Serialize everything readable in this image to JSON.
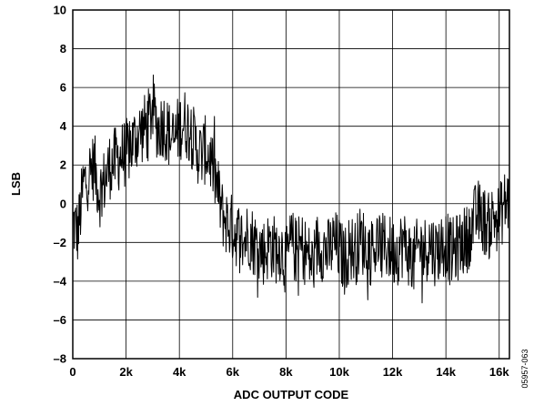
{
  "chart_data": {
    "type": "line",
    "title": "",
    "xlabel": "ADC OUTPUT CODE",
    "ylabel": "LSB",
    "xlim": [
      0,
      16384
    ],
    "ylim": [
      -8,
      10
    ],
    "grid": true,
    "legend": "none",
    "x_ticks": [
      {
        "value": 0,
        "label": "0"
      },
      {
        "value": 2000,
        "label": "2k"
      },
      {
        "value": 4000,
        "label": "4k"
      },
      {
        "value": 6000,
        "label": "6k"
      },
      {
        "value": 8000,
        "label": "8k"
      },
      {
        "value": 10000,
        "label": "10k"
      },
      {
        "value": 12000,
        "label": "12k"
      },
      {
        "value": 14000,
        "label": "14k"
      },
      {
        "value": 16000,
        "label": "16k"
      }
    ],
    "y_ticks": [
      {
        "value": 10,
        "label": "10"
      },
      {
        "value": 8,
        "label": "8"
      },
      {
        "value": 6,
        "label": "6"
      },
      {
        "value": 4,
        "label": "4"
      },
      {
        "value": 2,
        "label": "2"
      },
      {
        "value": 0,
        "label": "0"
      },
      {
        "value": -2,
        "label": "–2"
      },
      {
        "value": -4,
        "label": "–4"
      },
      {
        "value": -6,
        "label": "–6"
      },
      {
        "value": -8,
        "label": "–8"
      }
    ],
    "line_color": "#000000",
    "series": [
      {
        "x": [
          0,
          200,
          400,
          600,
          800,
          1000,
          1200,
          1400,
          1600,
          1800,
          2000,
          2200,
          2400,
          2600,
          2800,
          3000,
          3200,
          3400,
          3600,
          3800,
          4000,
          4200,
          4400,
          4600,
          4800,
          5000,
          5200,
          5400,
          5600,
          5800,
          6000,
          6200,
          6400,
          6600,
          6800,
          7000,
          7200,
          7400,
          7600,
          7800,
          8000,
          8200,
          8400,
          8600,
          8800,
          9000,
          9200,
          9400,
          9600,
          9800,
          10000,
          10200,
          10400,
          10600,
          10800,
          11000,
          11200,
          11400,
          11600,
          11800,
          12000,
          12200,
          12400,
          12600,
          12800,
          13000,
          13200,
          13400,
          13600,
          13800,
          14000,
          14200,
          14400,
          14600,
          14800,
          15000,
          15200,
          15400,
          15600,
          15800,
          16000,
          16200,
          16384
        ],
        "values": [
          -1.0,
          -1.5,
          1.0,
          1.5,
          2.0,
          0.5,
          1.2,
          2.0,
          2.2,
          2.5,
          2.6,
          3.0,
          3.5,
          3.8,
          4.0,
          5.0,
          3.8,
          4.2,
          3.6,
          3.2,
          4.0,
          4.2,
          3.8,
          3.0,
          2.5,
          2.8,
          2.2,
          1.0,
          -0.5,
          -1.0,
          -1.3,
          -1.6,
          -2.0,
          -1.5,
          -2.0,
          -2.3,
          -2.5,
          -2.0,
          -2.4,
          -2.2,
          -3.0,
          -2.0,
          -2.5,
          -2.2,
          -2.6,
          -3.2,
          -2.0,
          -2.3,
          -2.5,
          -2.0,
          -2.4,
          -3.0,
          -2.2,
          -2.5,
          -1.8,
          -2.2,
          -2.5,
          -2.0,
          -2.3,
          -2.2,
          -2.5,
          -2.4,
          -2.0,
          -2.5,
          -3.0,
          -2.2,
          -2.4,
          -2.0,
          -2.5,
          -2.2,
          -2.0,
          -2.6,
          -2.3,
          -2.0,
          -1.8,
          -1.0,
          -0.5,
          -0.8,
          -1.2,
          -0.6,
          -0.8,
          0.0,
          0.2
        ]
      }
    ]
  },
  "figure_code": "05957-063"
}
